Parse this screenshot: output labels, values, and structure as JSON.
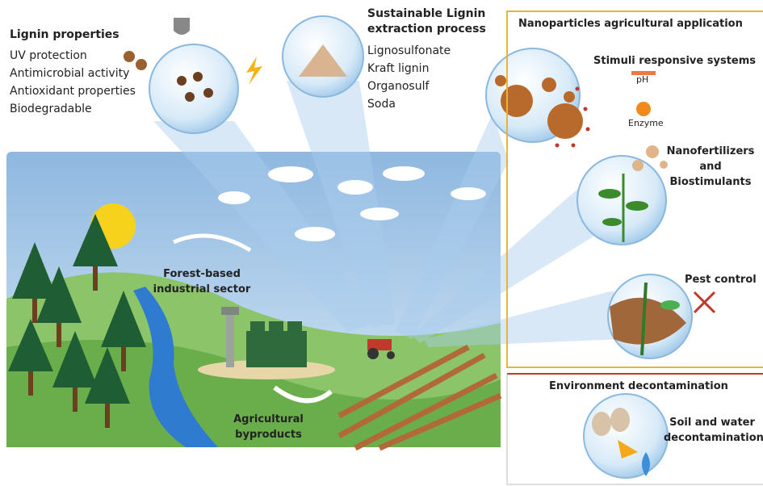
{
  "lignin_properties": {
    "title": "Lignin properties",
    "items": [
      "UV protection",
      "Antimicrobial activity",
      "Antioxidant properties",
      "Biodegradable"
    ]
  },
  "extraction": {
    "title": "Sustainable Lignin extraction process",
    "items": [
      "Lignosulfonate",
      "Kraft lignin",
      "Organosulf",
      "Soda"
    ]
  },
  "nano_application": {
    "title": "Nanoparticles agricultural application",
    "stimuli": {
      "label": "Stimuli responsive systems",
      "ph": "pH",
      "enzyme": "Enzyme"
    },
    "nanofertilizers": "Nanofertilizers and Biostimulants",
    "pest_control": "Pest control"
  },
  "environment": {
    "title": "Environment decontamination",
    "soil_water": "Soil and water decontamination"
  },
  "scene": {
    "forest_sector": "Forest-based industrial sector",
    "agricultural_byproducts": "Agricultural byproducts"
  }
}
